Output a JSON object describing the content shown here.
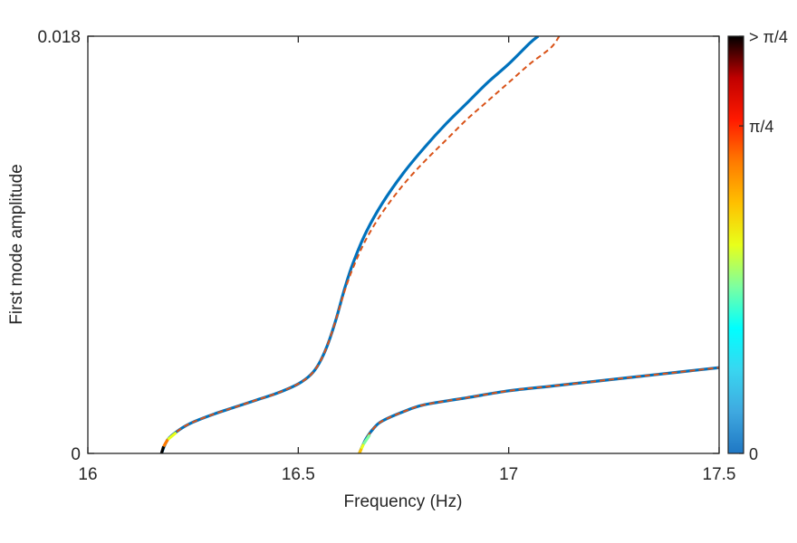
{
  "chart_data": {
    "type": "line",
    "xlabel": "Frequency (Hz)",
    "ylabel": "First mode amplitude",
    "xlim": [
      16,
      17.5
    ],
    "ylim": [
      0,
      0.018
    ],
    "x_ticks": [
      "16",
      "16.5",
      "17",
      "17.5"
    ],
    "y_ticks": [
      "0",
      "0.018"
    ],
    "grid": false,
    "colorbar": {
      "ticks": [
        "0",
        "π/4",
        "> π/4"
      ],
      "colormap": [
        "#1f77c4",
        "#3fa9e0",
        "#39d6f0",
        "#00ffff",
        "#7dffa0",
        "#e8ff1a",
        "#ffc000",
        "#ff7a00",
        "#ff1a00",
        "#c00000",
        "#000000"
      ]
    },
    "series": [
      {
        "style": "solid",
        "color": "#0072bd",
        "x": [
          16.175,
          16.19,
          16.22,
          16.25,
          16.3,
          16.35,
          16.4,
          16.45,
          16.5,
          16.53,
          16.55,
          16.57,
          16.59,
          16.61,
          16.63,
          16.66,
          16.7,
          16.75,
          16.8,
          16.85,
          16.9,
          16.95,
          17.0,
          17.05,
          17.07
        ],
        "y": [
          0.0,
          0.0006,
          0.00105,
          0.00135,
          0.0017,
          0.002,
          0.0023,
          0.0026,
          0.003,
          0.0034,
          0.0039,
          0.0047,
          0.0058,
          0.0071,
          0.0082,
          0.0095,
          0.0108,
          0.0121,
          0.0132,
          0.0142,
          0.0151,
          0.016,
          0.0168,
          0.0177,
          0.018
        ]
      },
      {
        "style": "dashed",
        "color": "#d95319",
        "x": [
          16.175,
          16.19,
          16.22,
          16.25,
          16.3,
          16.35,
          16.4,
          16.45,
          16.5,
          16.53,
          16.55,
          16.57,
          16.59,
          16.61,
          16.63,
          16.66,
          16.7,
          16.75,
          16.8,
          16.85,
          16.9,
          16.95,
          17.0,
          17.05,
          17.1,
          17.12
        ],
        "y": [
          0.0,
          0.0006,
          0.00105,
          0.00135,
          0.0017,
          0.002,
          0.0023,
          0.0026,
          0.003,
          0.0034,
          0.0039,
          0.0047,
          0.0058,
          0.007,
          0.008,
          0.0092,
          0.0104,
          0.0116,
          0.0126,
          0.0135,
          0.0144,
          0.0152,
          0.016,
          0.0168,
          0.0175,
          0.018
        ]
      },
      {
        "style": "solid",
        "color": "#0072bd",
        "x": [
          16.645,
          16.66,
          16.68,
          16.7,
          16.75,
          16.8,
          16.9,
          17.0,
          17.1,
          17.2,
          17.3,
          17.4,
          17.5
        ],
        "y": [
          0.0,
          0.0006,
          0.0011,
          0.0014,
          0.0018,
          0.0021,
          0.0024,
          0.0027,
          0.0029,
          0.0031,
          0.0033,
          0.0035,
          0.0037
        ]
      },
      {
        "style": "dashed",
        "color": "#d95319",
        "x": [
          16.645,
          16.66,
          16.68,
          16.7,
          16.75,
          16.8,
          16.9,
          17.0,
          17.1,
          17.2,
          17.3,
          17.4,
          17.5
        ],
        "y": [
          0.0,
          0.0006,
          0.0011,
          0.0014,
          0.0018,
          0.0021,
          0.0024,
          0.0027,
          0.0029,
          0.0031,
          0.0033,
          0.0035,
          0.0037
        ]
      }
    ]
  }
}
